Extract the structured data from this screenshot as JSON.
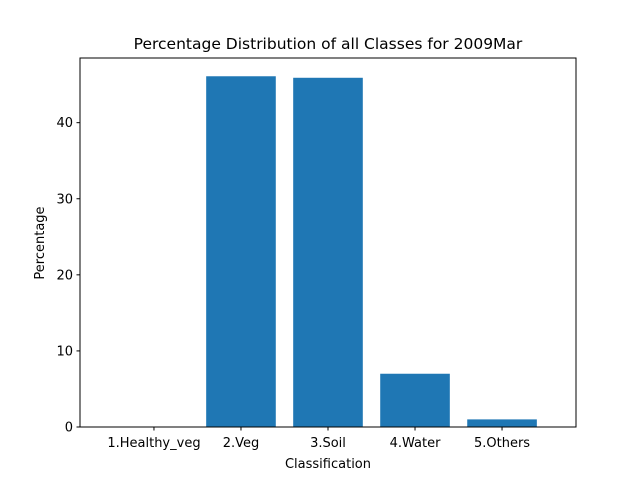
{
  "chart_data": {
    "type": "bar",
    "title": "Percentage Distribution of all Classes for 2009Mar",
    "xlabel": "Classification",
    "ylabel": "Percentage",
    "categories": [
      "1.Healthy_veg",
      "2.Veg",
      "3.Soil",
      "4.Water",
      "5.Others"
    ],
    "values": [
      0.0,
      46.1,
      45.9,
      7.0,
      1.0
    ],
    "ylim": [
      0,
      48.5
    ],
    "yticks": [
      0,
      10,
      20,
      30,
      40
    ],
    "bar_color": "#1f77b4",
    "grid": false,
    "legend": "none"
  }
}
